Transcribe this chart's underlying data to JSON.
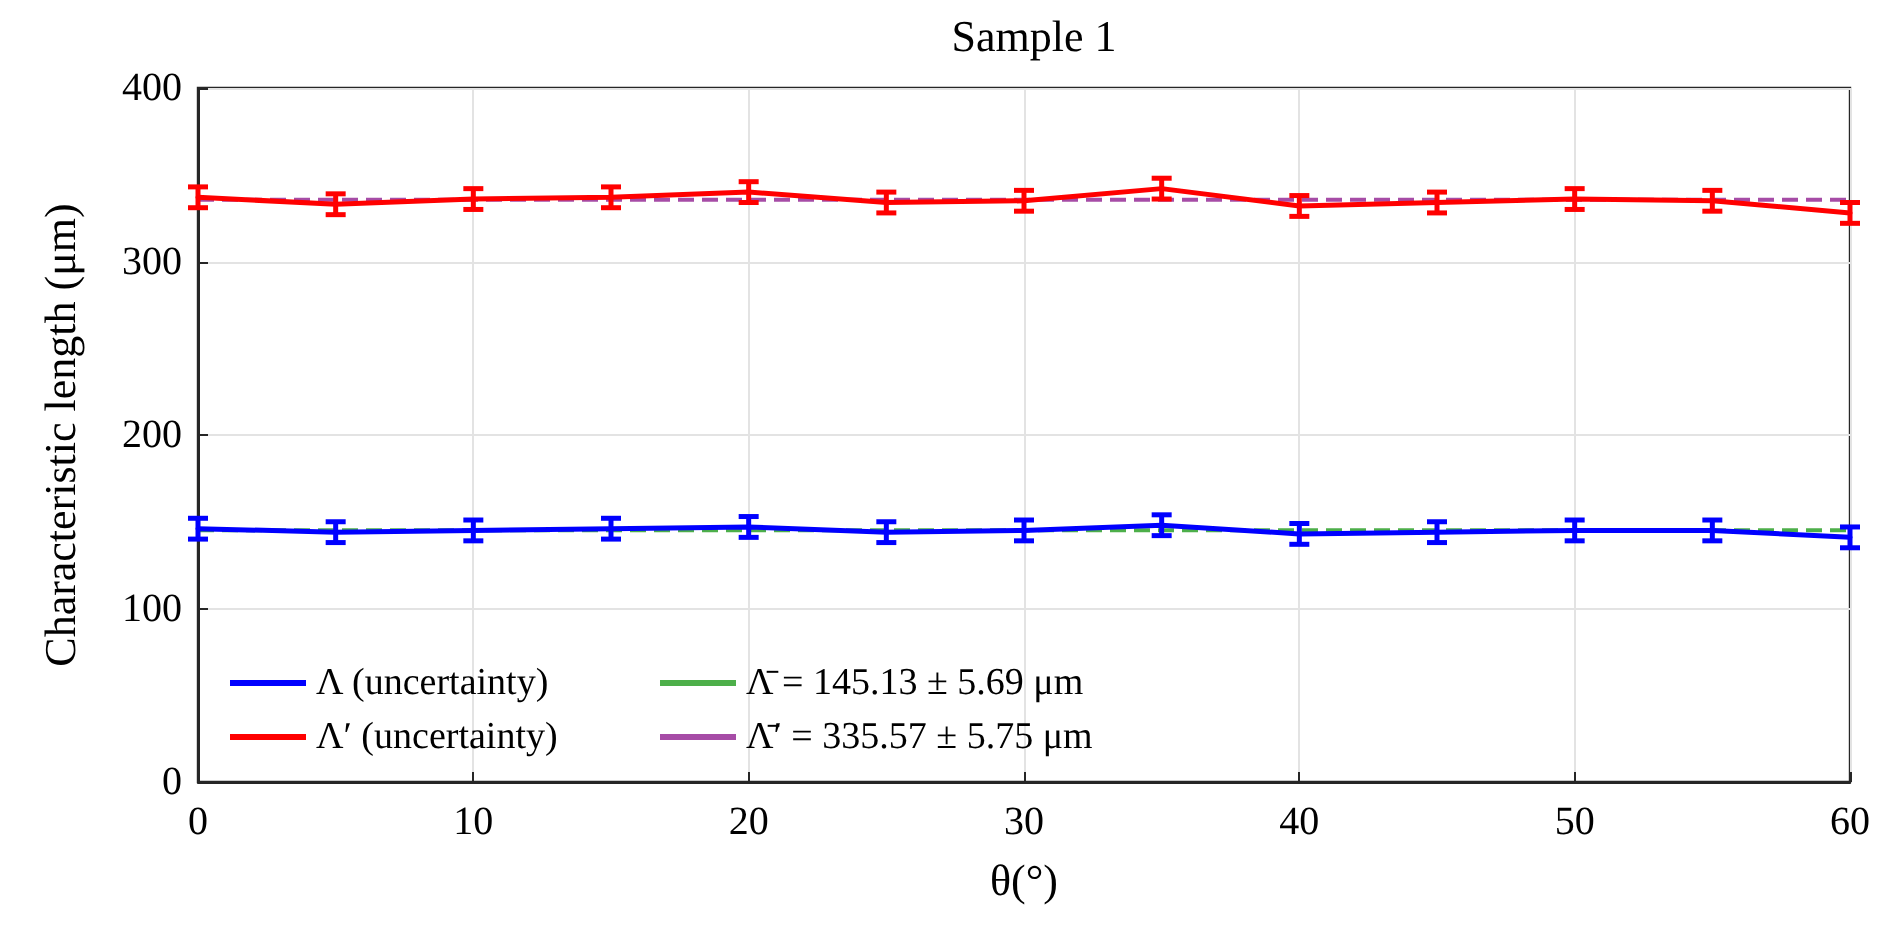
{
  "chart_data": {
    "type": "line",
    "title": "Sample 1",
    "xlabel": "θ(°)",
    "ylabel": "Characteristic length (μm)",
    "x": [
      0,
      5,
      10,
      15,
      20,
      25,
      30,
      35,
      40,
      45,
      50,
      55,
      60
    ],
    "series": [
      {
        "name": "Λ (uncertainty)",
        "color": "#0000ff",
        "values": [
          146,
          144,
          145,
          146,
          147,
          144,
          145,
          148,
          143,
          144,
          145,
          145,
          141
        ],
        "errors": [
          6,
          6,
          6,
          6,
          6,
          6,
          6,
          6,
          6,
          6,
          6,
          6,
          6
        ]
      },
      {
        "name": "Λ′ (uncertainty)",
        "color": "#ff0000",
        "values": [
          337,
          333,
          336,
          337,
          340,
          334,
          335,
          342,
          332,
          334,
          336,
          335,
          328
        ],
        "errors": [
          6,
          6,
          6,
          6,
          6,
          6,
          6,
          6,
          6,
          6,
          6,
          6,
          6
        ]
      }
    ],
    "ref_lines": [
      {
        "axis": "y",
        "value": 145.13,
        "label": "Λ̄ = 145.13 ± 5.69 μm",
        "color": "#4daf4a",
        "line_style": "dashed"
      },
      {
        "axis": "y",
        "value": 335.57,
        "label": "Λ̄′ = 335.57 ± 5.75 μm",
        "color": "#a64ca6",
        "line_style": "dashed"
      }
    ],
    "xlim": [
      0,
      60
    ],
    "xticks": [
      0,
      10,
      20,
      30,
      40,
      50,
      60
    ],
    "ylim": [
      0,
      400
    ],
    "yticks": [
      0,
      100,
      200,
      300,
      400
    ],
    "grid": true,
    "legend": "bottom left",
    "marker": "none",
    "line_style": "solid"
  }
}
